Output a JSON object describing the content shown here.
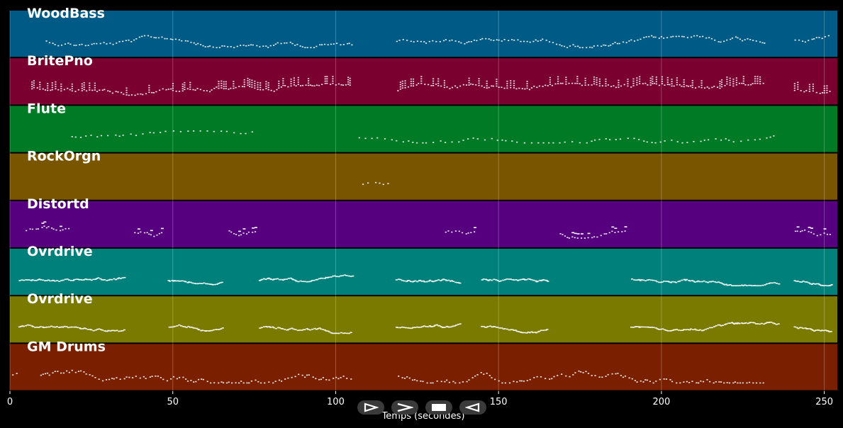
{
  "chart_data": {
    "type": "piano-roll",
    "xlabel": "Temps (secondes)",
    "xlim": [
      0,
      254
    ],
    "x_ticks": [
      0,
      50,
      100,
      150,
      200,
      250
    ],
    "grid": true,
    "tracks": [
      {
        "name": "WoodBass",
        "color": "#005a86",
        "density": 0.55,
        "style": "melody",
        "segments": [
          [
            10,
            105
          ],
          [
            118,
            232
          ],
          [
            240,
            252
          ]
        ]
      },
      {
        "name": "BritePno",
        "color": "#7a0030",
        "density": 0.7,
        "style": "chords",
        "segments": [
          [
            6,
            105
          ],
          [
            118,
            232
          ],
          [
            240,
            252
          ]
        ]
      },
      {
        "name": "Flute",
        "color": "#007a25",
        "density": 0.35,
        "style": "sparse",
        "segments": [
          [
            17,
            75
          ],
          [
            105,
            236
          ]
        ]
      },
      {
        "name": "RockOrgn",
        "color": "#7a5500",
        "density": 0.3,
        "style": "sparse",
        "segments": [
          [
            106,
            117
          ]
        ]
      },
      {
        "name": "Distortd",
        "color": "#560080",
        "density": 0.5,
        "style": "riff",
        "segments": [
          [
            4,
            18
          ],
          [
            37,
            47
          ],
          [
            66,
            76
          ],
          [
            133,
            143
          ],
          [
            168,
            189
          ],
          [
            240,
            252
          ]
        ]
      },
      {
        "name": "Ovrdrive",
        "color": "#00807a",
        "density": 0.6,
        "style": "lead",
        "segments": [
          [
            2,
            35
          ],
          [
            48,
            65
          ],
          [
            76,
            105
          ],
          [
            118,
            138
          ],
          [
            144,
            165
          ],
          [
            190,
            236
          ],
          [
            240,
            252
          ]
        ]
      },
      {
        "name": "Ovrdrive",
        "color": "#7a7a00",
        "density": 0.6,
        "style": "lead",
        "segments": [
          [
            2,
            35
          ],
          [
            48,
            65
          ],
          [
            76,
            105
          ],
          [
            118,
            138
          ],
          [
            144,
            165
          ],
          [
            190,
            236
          ],
          [
            240,
            252
          ]
        ]
      },
      {
        "name": "GM Drums",
        "color": "#7a2000",
        "density": 0.4,
        "style": "drums",
        "segments": [
          [
            0,
            2
          ],
          [
            8,
            105
          ],
          [
            118,
            232
          ],
          [
            240,
            241
          ]
        ]
      }
    ]
  },
  "controls": [
    {
      "name": "play-icon",
      "symbol": "play"
    },
    {
      "name": "fast-forward-icon",
      "symbol": "forward"
    },
    {
      "name": "stop-icon",
      "symbol": "stop"
    },
    {
      "name": "rewind-icon",
      "symbol": "back"
    }
  ]
}
